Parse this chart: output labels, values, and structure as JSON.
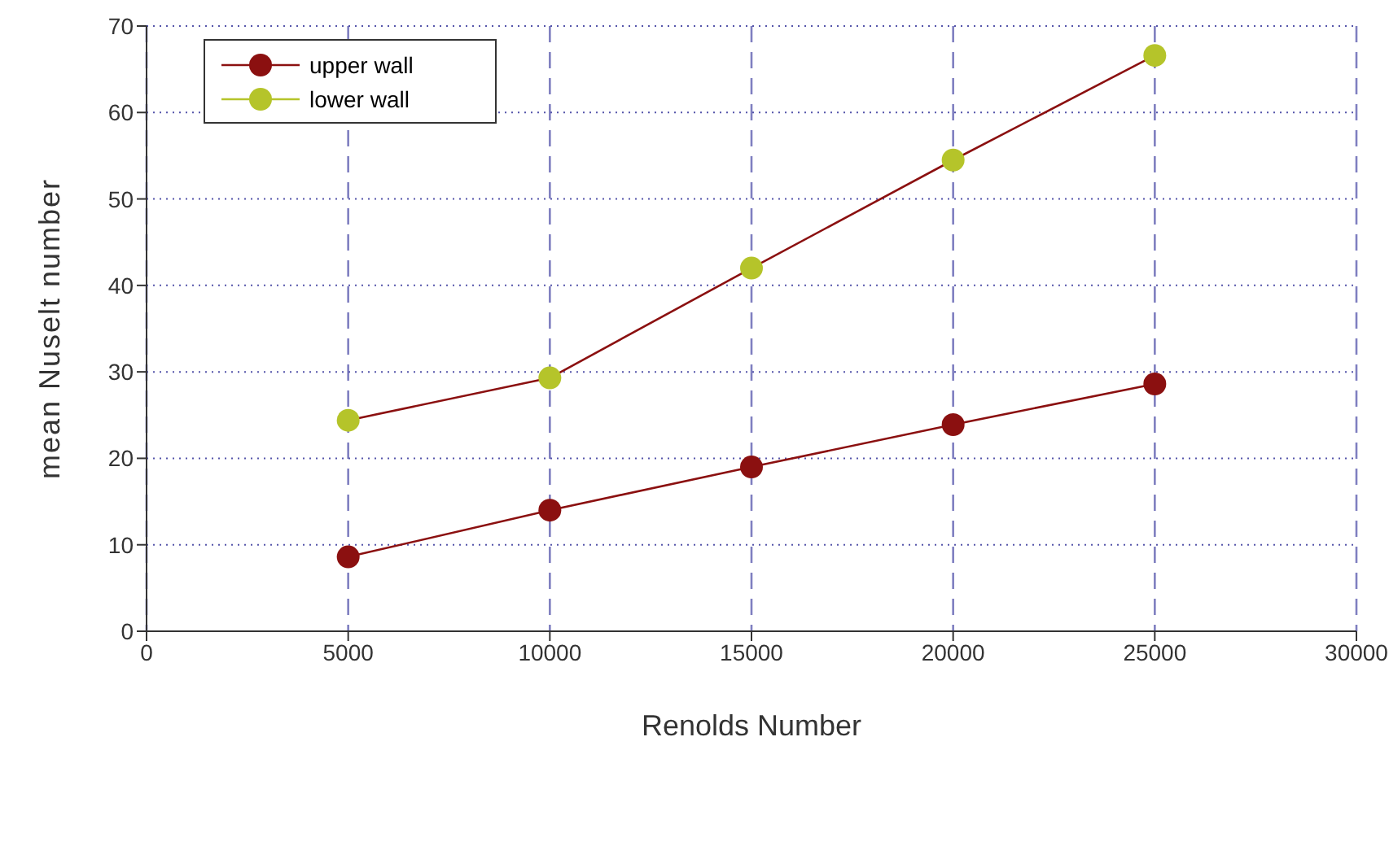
{
  "chart_data": {
    "type": "line",
    "xlabel": "Renolds Number",
    "ylabel": "mean Nuselt number",
    "x": [
      5000,
      10000,
      15000,
      20000,
      25000
    ],
    "series": [
      {
        "name": "upper wall",
        "color": "#8b1010",
        "values": [
          8.6,
          14.0,
          19.0,
          23.9,
          28.6
        ]
      },
      {
        "name": "lower wall",
        "color": "#b5c42a",
        "values": [
          24.4,
          29.3,
          42.0,
          54.5,
          66.6
        ]
      }
    ],
    "xlim": [
      0,
      30000
    ],
    "xticks": [
      0,
      5000,
      10000,
      15000,
      20000,
      25000,
      30000
    ],
    "ylim": [
      0,
      70
    ],
    "yticks": [
      0,
      10,
      20,
      30,
      40,
      50,
      60,
      70
    ],
    "grid": true,
    "legend": "top left",
    "marker": "circle",
    "line_style": "solid"
  }
}
